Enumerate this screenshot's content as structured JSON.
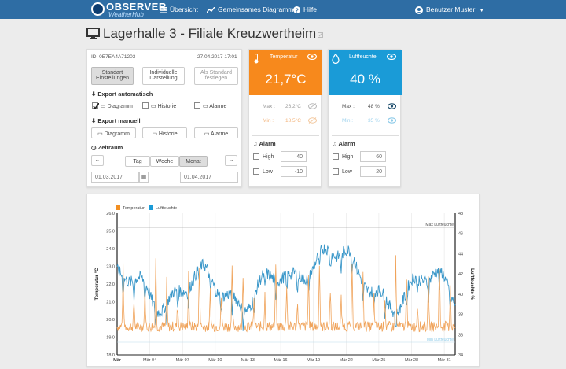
{
  "app": {
    "brand_line1": "OBSERVER",
    "brand_line2": "WeatherHub"
  },
  "nav": {
    "overview": "Übersicht",
    "shared_chart": "Gemeinsames Diagramm",
    "help": "Hilfe",
    "user": "Benutzer Muster"
  },
  "page": {
    "title": "Lagerhalle 3 - Filiale Kreuzwertheim"
  },
  "control": {
    "id": "ID: 0E7EA4A71203",
    "timestamp": "27.04.2017  17:01",
    "buttons": {
      "standard": "Standart Einstellungen",
      "individual": "Individuelle Darstellung",
      "as_default": "Als Standard festlegen"
    },
    "export_auto": {
      "title": "Export automatisch",
      "diagram": "Diagramm",
      "history": "Historie",
      "alarms": "Alarme"
    },
    "export_manual": {
      "title": "Export manuell",
      "diagram": "Diagramm",
      "history": "Historie",
      "alarms": "Alarme"
    },
    "timerange": {
      "title": "Zeitraum",
      "day": "Tag",
      "week": "Woche",
      "month": "Monat",
      "from": "01.03.2017",
      "to": "01.04.2017"
    }
  },
  "temp_card": {
    "title": "Temperatur",
    "value": "21,7°C",
    "max_label": "Max :",
    "max_value": "26,2°C",
    "min_label": "Min :",
    "min_value": "18,5°C",
    "alarm": "Alarm",
    "high_label": "High",
    "high_value": "40",
    "low_label": "Low",
    "low_value": "-10",
    "color": "#f7891c"
  },
  "hum_card": {
    "title": "Luftfeuchte",
    "value": "40 %",
    "max_label": "Max :",
    "max_value": "48 %",
    "min_label": "Min :",
    "min_value": "35 %",
    "alarm": "Alarm",
    "high_label": "High",
    "high_value": "60",
    "low_label": "Low",
    "low_value": "20",
    "color": "#1a9bd7"
  },
  "chart_data": {
    "type": "line",
    "legend": [
      "Temperatur",
      "Luftfeuchte"
    ],
    "ylabel_left": "Temperatur °C",
    "ylabel_right": "Luftfeuchte %",
    "y_left_ticks": [
      "26.0",
      "25.0",
      "24.0",
      "23.0",
      "22.0",
      "21.0",
      "20.0",
      "19.0",
      "18.0"
    ],
    "y_left_range": [
      18,
      26
    ],
    "y_right_ticks": [
      "48",
      "46",
      "44",
      "42",
      "40",
      "38",
      "36",
      "34"
    ],
    "y_right_range": [
      34,
      48
    ],
    "x_ticks": [
      "Mär",
      "Mär 04",
      "Mär 07",
      "Mär 10",
      "Mär 13",
      "Mär 16",
      "Mär 19",
      "Mär 22",
      "Mär 25",
      "Mär 28",
      "Mär 31"
    ],
    "x_range_days": [
      1,
      32
    ],
    "max_line_label": "Max Luftfeuchte",
    "min_line_label": "Min Luftfeuchte",
    "max_line_value": 48,
    "min_line_value": 35,
    "colors": {
      "temperature": "#f0a35a",
      "humidity": "#3a97c9"
    }
  }
}
